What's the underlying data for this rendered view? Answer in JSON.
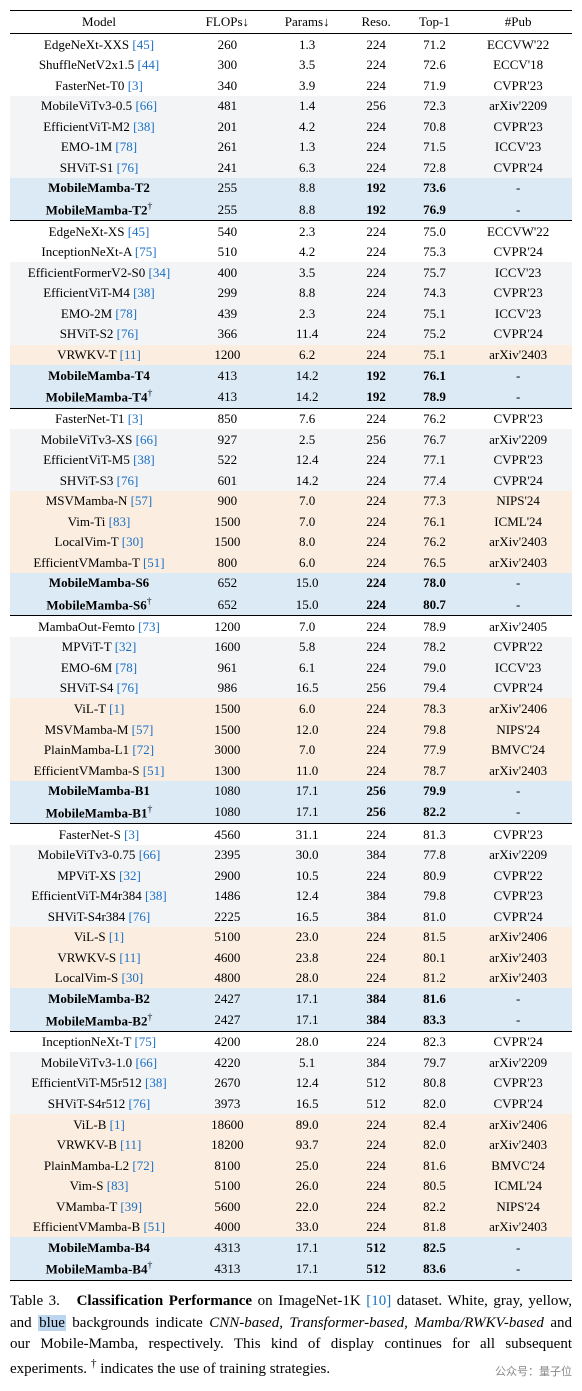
{
  "colors": {
    "white": "#ffffff",
    "gray": "#f2f4f5",
    "yellow": "#fbeee0",
    "blue": "#dceaf5",
    "ref": "#1a6fc4"
  },
  "headers": [
    "Model",
    "FLOPs↓",
    "Params↓",
    "Reso.",
    "Top-1",
    "#Pub"
  ],
  "groups": [
    [
      {
        "bg": "white",
        "model": "EdgeNeXt-XXS",
        "ref": "[45]",
        "flops": "260",
        "params": "1.3",
        "reso": "224",
        "top1": "71.2",
        "pub": "ECCVW'22"
      },
      {
        "bg": "white",
        "model": "ShuffleNetV2x1.5",
        "ref": "[44]",
        "flops": "300",
        "params": "3.5",
        "reso": "224",
        "top1": "72.6",
        "pub": "ECCV'18"
      },
      {
        "bg": "white",
        "model": "FasterNet-T0",
        "ref": "[3]",
        "flops": "340",
        "params": "3.9",
        "reso": "224",
        "top1": "71.9",
        "pub": "CVPR'23"
      },
      {
        "bg": "gray",
        "model": "MobileViTv3-0.5",
        "ref": "[66]",
        "flops": "481",
        "params": "1.4",
        "reso": "256",
        "top1": "72.3",
        "pub": "arXiv'2209"
      },
      {
        "bg": "gray",
        "model": "EfficientViT-M2",
        "ref": "[38]",
        "flops": "201",
        "params": "4.2",
        "reso": "224",
        "top1": "70.8",
        "pub": "CVPR'23"
      },
      {
        "bg": "gray",
        "model": "EMO-1M",
        "ref": "[78]",
        "flops": "261",
        "params": "1.3",
        "reso": "224",
        "top1": "71.5",
        "pub": "ICCV'23"
      },
      {
        "bg": "gray",
        "model": "SHViT-S1",
        "ref": "[76]",
        "flops": "241",
        "params": "6.3",
        "reso": "224",
        "top1": "72.8",
        "pub": "CVPR'24"
      },
      {
        "bg": "blue",
        "bold": true,
        "model": "MobileMamba-T2",
        "ref": "",
        "flops": "255",
        "params": "8.8",
        "reso": "192",
        "top1": "73.6",
        "pub": "-",
        "hlcols": [
          "reso",
          "top1"
        ]
      },
      {
        "bg": "blue",
        "bold": true,
        "model": "MobileMamba-T2",
        "dag": true,
        "ref": "",
        "flops": "255",
        "params": "8.8",
        "reso": "192",
        "top1": "76.9",
        "pub": "-",
        "hlcols": [
          "reso",
          "top1"
        ]
      }
    ],
    [
      {
        "bg": "white",
        "model": "EdgeNeXt-XS",
        "ref": "[45]",
        "flops": "540",
        "params": "2.3",
        "reso": "224",
        "top1": "75.0",
        "pub": "ECCVW'22"
      },
      {
        "bg": "white",
        "model": "InceptionNeXt-A",
        "ref": "[75]",
        "flops": "510",
        "params": "4.2",
        "reso": "224",
        "top1": "75.3",
        "pub": "CVPR'24"
      },
      {
        "bg": "gray",
        "model": "EfficientFormerV2-S0",
        "ref": "[34]",
        "flops": "400",
        "params": "3.5",
        "reso": "224",
        "top1": "75.7",
        "pub": "ICCV'23"
      },
      {
        "bg": "gray",
        "model": "EfficientViT-M4",
        "ref": "[38]",
        "flops": "299",
        "params": "8.8",
        "reso": "224",
        "top1": "74.3",
        "pub": "CVPR'23"
      },
      {
        "bg": "gray",
        "model": "EMO-2M",
        "ref": "[78]",
        "flops": "439",
        "params": "2.3",
        "reso": "224",
        "top1": "75.1",
        "pub": "ICCV'23"
      },
      {
        "bg": "gray",
        "model": "SHViT-S2",
        "ref": "[76]",
        "flops": "366",
        "params": "11.4",
        "reso": "224",
        "top1": "75.2",
        "pub": "CVPR'24"
      },
      {
        "bg": "yellow",
        "model": "VRWKV-T",
        "ref": "[11]",
        "flops": "1200",
        "params": "6.2",
        "reso": "224",
        "top1": "75.1",
        "pub": "arXiv'2403"
      },
      {
        "bg": "blue",
        "bold": true,
        "model": "MobileMamba-T4",
        "ref": "",
        "flops": "413",
        "params": "14.2",
        "reso": "192",
        "top1": "76.1",
        "pub": "-",
        "hlcols": [
          "reso",
          "top1"
        ]
      },
      {
        "bg": "blue",
        "bold": true,
        "model": "MobileMamba-T4",
        "dag": true,
        "ref": "",
        "flops": "413",
        "params": "14.2",
        "reso": "192",
        "top1": "78.9",
        "pub": "-",
        "hlcols": [
          "reso",
          "top1"
        ]
      }
    ],
    [
      {
        "bg": "white",
        "model": "FasterNet-T1",
        "ref": "[3]",
        "flops": "850",
        "params": "7.6",
        "reso": "224",
        "top1": "76.2",
        "pub": "CVPR'23"
      },
      {
        "bg": "gray",
        "model": "MobileViTv3-XS",
        "ref": "[66]",
        "flops": "927",
        "params": "2.5",
        "reso": "256",
        "top1": "76.7",
        "pub": "arXiv'2209"
      },
      {
        "bg": "gray",
        "model": "EfficientViT-M5",
        "ref": "[38]",
        "flops": "522",
        "params": "12.4",
        "reso": "224",
        "top1": "77.1",
        "pub": "CVPR'23"
      },
      {
        "bg": "gray",
        "model": "SHViT-S3",
        "ref": "[76]",
        "flops": "601",
        "params": "14.2",
        "reso": "224",
        "top1": "77.4",
        "pub": "CVPR'24"
      },
      {
        "bg": "yellow",
        "model": "MSVMamba-N",
        "ref": "[57]",
        "flops": "900",
        "params": "7.0",
        "reso": "224",
        "top1": "77.3",
        "pub": "NIPS'24"
      },
      {
        "bg": "yellow",
        "model": "Vim-Ti",
        "ref": "[83]",
        "flops": "1500",
        "params": "7.0",
        "reso": "224",
        "top1": "76.1",
        "pub": "ICML'24"
      },
      {
        "bg": "yellow",
        "model": "LocalVim-T",
        "ref": "[30]",
        "flops": "1500",
        "params": "8.0",
        "reso": "224",
        "top1": "76.2",
        "pub": "arXiv'2403"
      },
      {
        "bg": "yellow",
        "model": "EfficientVMamba-T",
        "ref": "[51]",
        "flops": "800",
        "params": "6.0",
        "reso": "224",
        "top1": "76.5",
        "pub": "arXiv'2403"
      },
      {
        "bg": "blue",
        "bold": true,
        "model": "MobileMamba-S6",
        "ref": "",
        "flops": "652",
        "params": "15.0",
        "reso": "224",
        "top1": "78.0",
        "pub": "-",
        "hlcols": [
          "reso",
          "top1"
        ]
      },
      {
        "bg": "blue",
        "bold": true,
        "model": "MobileMamba-S6",
        "dag": true,
        "ref": "",
        "flops": "652",
        "params": "15.0",
        "reso": "224",
        "top1": "80.7",
        "pub": "-",
        "hlcols": [
          "reso",
          "top1"
        ]
      }
    ],
    [
      {
        "bg": "white",
        "model": "MambaOut-Femto",
        "ref": "[73]",
        "flops": "1200",
        "params": "7.0",
        "reso": "224",
        "top1": "78.9",
        "pub": "arXiv'2405"
      },
      {
        "bg": "gray",
        "model": "MPViT-T",
        "ref": "[32]",
        "flops": "1600",
        "params": "5.8",
        "reso": "224",
        "top1": "78.2",
        "pub": "CVPR'22"
      },
      {
        "bg": "gray",
        "model": "EMO-6M",
        "ref": "[78]",
        "flops": "961",
        "params": "6.1",
        "reso": "224",
        "top1": "79.0",
        "pub": "ICCV'23"
      },
      {
        "bg": "gray",
        "model": "SHViT-S4",
        "ref": "[76]",
        "flops": "986",
        "params": "16.5",
        "reso": "256",
        "top1": "79.4",
        "pub": "CVPR'24"
      },
      {
        "bg": "yellow",
        "model": "ViL-T",
        "ref": "[1]",
        "flops": "1500",
        "params": "6.0",
        "reso": "224",
        "top1": "78.3",
        "pub": "arXiv'2406"
      },
      {
        "bg": "yellow",
        "model": "MSVMamba-M",
        "ref": "[57]",
        "flops": "1500",
        "params": "12.0",
        "reso": "224",
        "top1": "79.8",
        "pub": "NIPS'24"
      },
      {
        "bg": "yellow",
        "model": "PlainMamba-L1",
        "ref": "[72]",
        "flops": "3000",
        "params": "7.0",
        "reso": "224",
        "top1": "77.9",
        "pub": "BMVC'24"
      },
      {
        "bg": "yellow",
        "model": "EfficientVMamba-S",
        "ref": "[51]",
        "flops": "1300",
        "params": "11.0",
        "reso": "224",
        "top1": "78.7",
        "pub": "arXiv'2403"
      },
      {
        "bg": "blue",
        "bold": true,
        "model": "MobileMamba-B1",
        "ref": "",
        "flops": "1080",
        "params": "17.1",
        "reso": "256",
        "top1": "79.9",
        "pub": "-",
        "hlcols": [
          "reso",
          "top1"
        ]
      },
      {
        "bg": "blue",
        "bold": true,
        "model": "MobileMamba-B1",
        "dag": true,
        "ref": "",
        "flops": "1080",
        "params": "17.1",
        "reso": "256",
        "top1": "82.2",
        "pub": "-",
        "hlcols": [
          "reso",
          "top1"
        ]
      }
    ],
    [
      {
        "bg": "white",
        "model": "FasterNet-S",
        "ref": "[3]",
        "flops": "4560",
        "params": "31.1",
        "reso": "224",
        "top1": "81.3",
        "pub": "CVPR'23"
      },
      {
        "bg": "gray",
        "model": "MobileViTv3-0.75",
        "ref": "[66]",
        "flops": "2395",
        "params": "30.0",
        "reso": "384",
        "top1": "77.8",
        "pub": "arXiv'2209"
      },
      {
        "bg": "gray",
        "model": "MPViT-XS",
        "ref": "[32]",
        "flops": "2900",
        "params": "10.5",
        "reso": "224",
        "top1": "80.9",
        "pub": "CVPR'22"
      },
      {
        "bg": "gray",
        "model": "EfficientViT-M4r384",
        "ref": "[38]",
        "flops": "1486",
        "params": "12.4",
        "reso": "384",
        "top1": "79.8",
        "pub": "CVPR'23"
      },
      {
        "bg": "gray",
        "model": "SHViT-S4r384",
        "ref": "[76]",
        "flops": "2225",
        "params": "16.5",
        "reso": "384",
        "top1": "81.0",
        "pub": "CVPR'24"
      },
      {
        "bg": "yellow",
        "model": "ViL-S",
        "ref": "[1]",
        "flops": "5100",
        "params": "23.0",
        "reso": "224",
        "top1": "81.5",
        "pub": "arXiv'2406"
      },
      {
        "bg": "yellow",
        "model": "VRWKV-S",
        "ref": "[11]",
        "flops": "4600",
        "params": "23.8",
        "reso": "224",
        "top1": "80.1",
        "pub": "arXiv'2403"
      },
      {
        "bg": "yellow",
        "model": "LocalVim-S",
        "ref": "[30]",
        "flops": "4800",
        "params": "28.0",
        "reso": "224",
        "top1": "81.2",
        "pub": "arXiv'2403"
      },
      {
        "bg": "blue",
        "bold": true,
        "model": "MobileMamba-B2",
        "ref": "",
        "flops": "2427",
        "params": "17.1",
        "reso": "384",
        "top1": "81.6",
        "pub": "-",
        "hlcols": [
          "reso",
          "top1"
        ]
      },
      {
        "bg": "blue",
        "bold": true,
        "model": "MobileMamba-B2",
        "dag": true,
        "ref": "",
        "flops": "2427",
        "params": "17.1",
        "reso": "384",
        "top1": "83.3",
        "pub": "-",
        "hlcols": [
          "reso",
          "top1"
        ]
      }
    ],
    [
      {
        "bg": "white",
        "model": "InceptionNeXt-T",
        "ref": "[75]",
        "flops": "4200",
        "params": "28.0",
        "reso": "224",
        "top1": "82.3",
        "pub": "CVPR'24"
      },
      {
        "bg": "gray",
        "model": "MobileViTv3-1.0",
        "ref": "[66]",
        "flops": "4220",
        "params": "5.1",
        "reso": "384",
        "top1": "79.7",
        "pub": "arXiv'2209"
      },
      {
        "bg": "gray",
        "model": "EfficientViT-M5r512",
        "ref": "[38]",
        "flops": "2670",
        "params": "12.4",
        "reso": "512",
        "top1": "80.8",
        "pub": "CVPR'23"
      },
      {
        "bg": "gray",
        "model": "SHViT-S4r512",
        "ref": "[76]",
        "flops": "3973",
        "params": "16.5",
        "reso": "512",
        "top1": "82.0",
        "pub": "CVPR'24"
      },
      {
        "bg": "yellow",
        "model": "ViL-B",
        "ref": "[1]",
        "flops": "18600",
        "params": "89.0",
        "reso": "224",
        "top1": "82.4",
        "pub": "arXiv'2406"
      },
      {
        "bg": "yellow",
        "model": "VRWKV-B",
        "ref": "[11]",
        "flops": "18200",
        "params": "93.7",
        "reso": "224",
        "top1": "82.0",
        "pub": "arXiv'2403"
      },
      {
        "bg": "yellow",
        "model": "PlainMamba-L2",
        "ref": "[72]",
        "flops": "8100",
        "params": "25.0",
        "reso": "224",
        "top1": "81.6",
        "pub": "BMVC'24"
      },
      {
        "bg": "yellow",
        "model": "Vim-S",
        "ref": "[83]",
        "flops": "5100",
        "params": "26.0",
        "reso": "224",
        "top1": "80.5",
        "pub": "ICML'24"
      },
      {
        "bg": "yellow",
        "model": "VMamba-T",
        "ref": "[39]",
        "flops": "5600",
        "params": "22.0",
        "reso": "224",
        "top1": "82.2",
        "pub": "NIPS'24"
      },
      {
        "bg": "yellow",
        "model": "EfficientVMamba-B",
        "ref": "[51]",
        "flops": "4000",
        "params": "33.0",
        "reso": "224",
        "top1": "81.8",
        "pub": "arXiv'2403"
      },
      {
        "bg": "blue",
        "bold": true,
        "model": "MobileMamba-B4",
        "ref": "",
        "flops": "4313",
        "params": "17.1",
        "reso": "512",
        "top1": "82.5",
        "pub": "-",
        "hlcols": [
          "reso",
          "top1"
        ]
      },
      {
        "bg": "blue",
        "bold": true,
        "model": "MobileMamba-B4",
        "dag": true,
        "ref": "",
        "flops": "4313",
        "params": "17.1",
        "reso": "512",
        "top1": "83.6",
        "pub": "-",
        "hlcols": [
          "reso",
          "top1"
        ]
      }
    ]
  ],
  "caption": {
    "label": "Table 3.",
    "title": "Classification Performance",
    "text1": " on ImageNet-1K ",
    "ref": "[10]",
    "text2": " dataset. White, gray, yellow, and ",
    "hl": "blue",
    "text3": " backgrounds indicate ",
    "italic": "CNN-based, Transformer-based, Mamba/RWKV-based",
    "text4": " and our Mobile-Mamba, respectively. This kind of display continues for all subsequent experiments. ",
    "dag": "†",
    "text5": " indicates the use of training strategies."
  },
  "watermark": "公众号：量子位"
}
